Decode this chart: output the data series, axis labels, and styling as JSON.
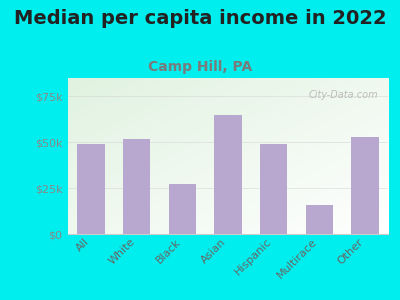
{
  "title": "Median per capita income in 2022",
  "subtitle": "Camp Hill, PA",
  "categories": [
    "All",
    "White",
    "Black",
    "Asian",
    "Hispanic",
    "Multirace",
    "Other"
  ],
  "values": [
    49000,
    51500,
    27000,
    65000,
    49000,
    16000,
    53000
  ],
  "bar_color": "#b8a8d0",
  "title_fontsize": 14,
  "subtitle_fontsize": 10,
  "subtitle_color": "#7a7a7a",
  "title_color": "#222222",
  "background_outer": "#00EEEE",
  "ylim": [
    0,
    85000
  ],
  "yticks": [
    0,
    25000,
    50000,
    75000
  ],
  "watermark": "City-Data.com",
  "tick_color": "#888888",
  "axis_label_color": "#666666"
}
